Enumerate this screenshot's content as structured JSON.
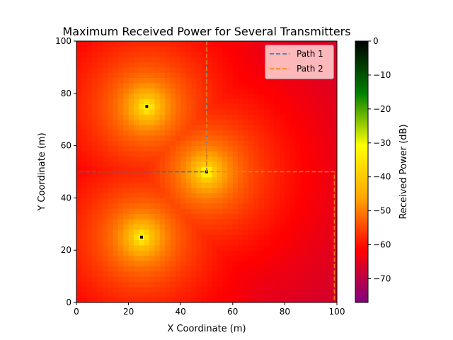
{
  "chart_data": {
    "type": "heatmap",
    "title": "Maximum Received Power for Several Transmitters",
    "xlabel": "X Coordinate (m)",
    "ylabel": "Y Coordinate (m)",
    "xlim": [
      0,
      100
    ],
    "ylim": [
      0,
      100
    ],
    "x_ticks": [
      0,
      20,
      40,
      60,
      80,
      100
    ],
    "y_ticks": [
      0,
      20,
      40,
      60,
      80,
      100
    ],
    "grid": false,
    "legend_position": "top-right",
    "transmitters": [
      {
        "x": 27,
        "y": 75
      },
      {
        "x": 50,
        "y": 50
      },
      {
        "x": 25,
        "y": 25
      }
    ],
    "colorbar": {
      "label": "Received Power (dB)",
      "range": [
        -77,
        0
      ],
      "ticks": [
        0,
        -10,
        -20,
        -30,
        -40,
        -50,
        -60,
        -70
      ],
      "colors": [
        "#800080",
        "#ff0000",
        "#ffa500",
        "#ffff00",
        "#008000",
        "#000000"
      ]
    },
    "series": [
      {
        "name": "Path 1",
        "color": "#1f77b4",
        "points": [
          [
            1,
            50
          ],
          [
            50,
            50
          ],
          [
            50,
            100
          ]
        ]
      },
      {
        "name": "Path 2",
        "color": "#ff7f0e",
        "points": [
          [
            50,
            100
          ],
          [
            50,
            50
          ],
          [
            99,
            50
          ],
          [
            99,
            0
          ]
        ]
      }
    ]
  }
}
